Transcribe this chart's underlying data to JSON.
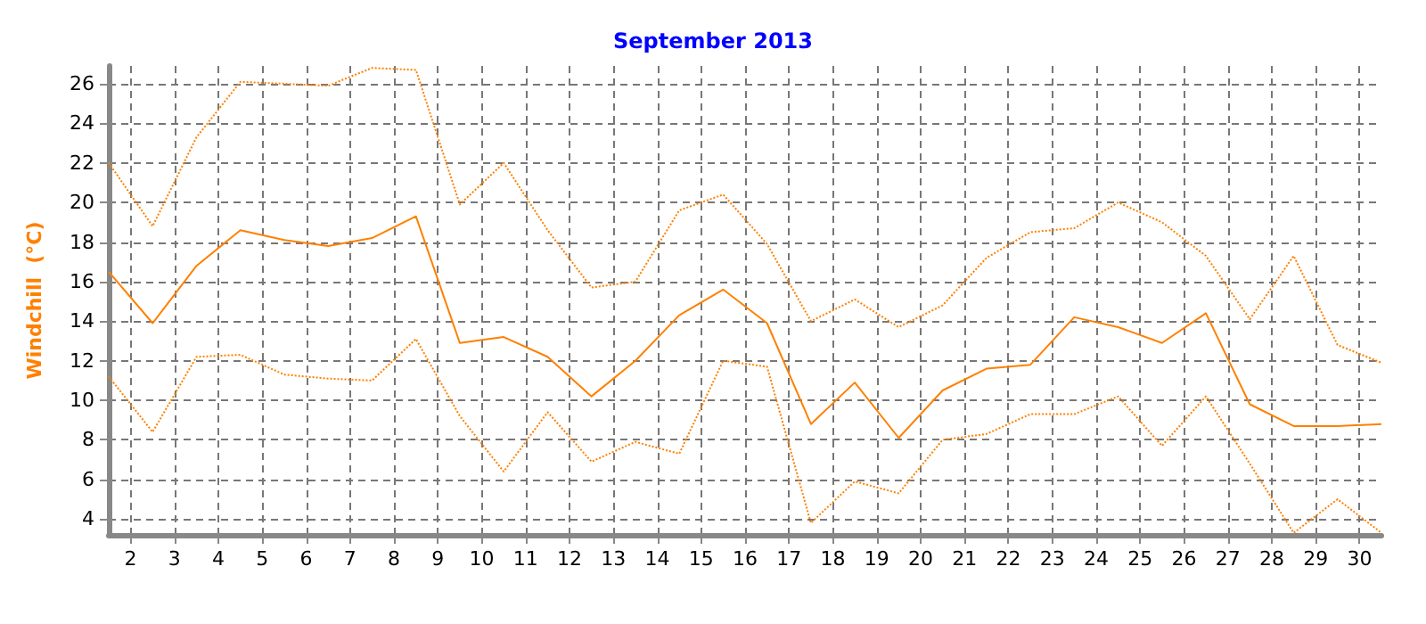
{
  "chart_data": {
    "type": "line",
    "title": "September 2013",
    "ylabel": "Windchill  (°C)",
    "x": [
      1.5,
      2.5,
      3.5,
      4.5,
      5.5,
      6.5,
      7.5,
      8.5,
      9.5,
      10.5,
      11.5,
      12.5,
      13.5,
      14.5,
      15.5,
      16.5,
      17.5,
      18.5,
      19.5,
      20.5,
      21.5,
      22.5,
      23.5,
      24.5,
      25.5,
      26.5,
      27.5,
      28.5,
      29.5,
      30.5
    ],
    "series": [
      {
        "color": "#ff8000",
        "line_style": "dotted",
        "values": [
          22.0,
          18.8,
          23.3,
          26.1,
          26.0,
          25.9,
          26.8,
          26.7,
          19.9,
          22.0,
          18.6,
          15.7,
          16.0,
          19.6,
          20.4,
          17.9,
          14.0,
          15.1,
          13.7,
          14.8,
          17.2,
          18.5,
          18.7,
          20.0,
          19.0,
          17.3,
          14.1,
          17.3,
          12.8,
          11.9
        ]
      },
      {
        "color": "#ff8000",
        "line_style": "solid",
        "values": [
          16.5,
          13.9,
          16.8,
          18.6,
          18.1,
          17.8,
          18.2,
          19.3,
          12.9,
          13.2,
          12.2,
          10.2,
          12.0,
          14.3,
          15.6,
          13.9,
          8.8,
          10.9,
          8.1,
          10.5,
          11.6,
          11.8,
          14.2,
          13.7,
          12.9,
          14.4,
          9.8,
          8.7,
          8.7,
          8.8
        ]
      },
      {
        "color": "#ff8000",
        "line_style": "dotted",
        "values": [
          11.2,
          8.4,
          12.2,
          12.3,
          11.3,
          11.1,
          11.0,
          13.1,
          9.2,
          6.4,
          9.4,
          6.9,
          7.9,
          7.3,
          12.0,
          11.7,
          3.8,
          5.9,
          5.3,
          8.0,
          8.3,
          9.3,
          9.3,
          10.2,
          7.7,
          10.2,
          6.8,
          3.3,
          5.0,
          3.3
        ]
      }
    ],
    "xlim": [
      1.5,
      30.5
    ],
    "xticks": [
      2,
      3,
      4,
      5,
      6,
      7,
      8,
      9,
      10,
      11,
      12,
      13,
      14,
      15,
      16,
      17,
      18,
      19,
      20,
      21,
      22,
      23,
      24,
      25,
      26,
      27,
      28,
      29,
      30
    ],
    "ylim": [
      3.2,
      26.9
    ],
    "yticks": [
      4,
      6,
      8,
      10,
      12,
      14,
      16,
      18,
      20,
      22,
      24,
      26
    ],
    "grid": true,
    "marker": "none"
  }
}
